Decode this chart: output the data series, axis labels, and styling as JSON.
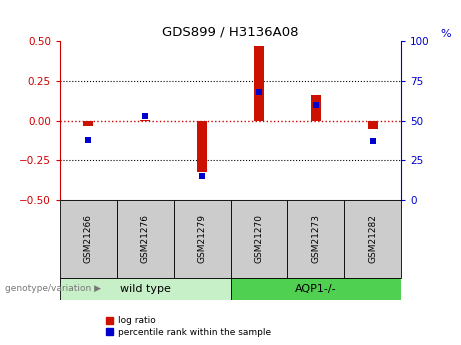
{
  "title": "GDS899 / H3136A08",
  "samples": [
    "GSM21266",
    "GSM21276",
    "GSM21279",
    "GSM21270",
    "GSM21273",
    "GSM21282"
  ],
  "log_ratio": [
    -0.03,
    0.005,
    -0.32,
    0.47,
    0.165,
    -0.05
  ],
  "percentile_rank": [
    38,
    53,
    15,
    68,
    60,
    37
  ],
  "group_wt_color": "#c8f0c8",
  "group_aqp_color": "#50d050",
  "left_axis_color": "#cc0000",
  "right_axis_color": "#0000cc",
  "bar_color_red": "#cc1100",
  "bar_color_blue": "#0000cc",
  "zero_line_color": "#cc0000",
  "grid_color": "#000000",
  "ylim_left": [
    -0.5,
    0.5
  ],
  "ylim_right": [
    0,
    100
  ],
  "yticks_left": [
    -0.5,
    -0.25,
    0.0,
    0.25,
    0.5
  ],
  "yticks_right": [
    0,
    25,
    50,
    75,
    100
  ],
  "sample_box_color": "#cccccc",
  "plot_bg": "#ffffff",
  "legend_label_red": "log ratio",
  "legend_label_blue": "percentile rank within the sample",
  "genotype_label": "genotype/variation",
  "bar_width": 0.18
}
